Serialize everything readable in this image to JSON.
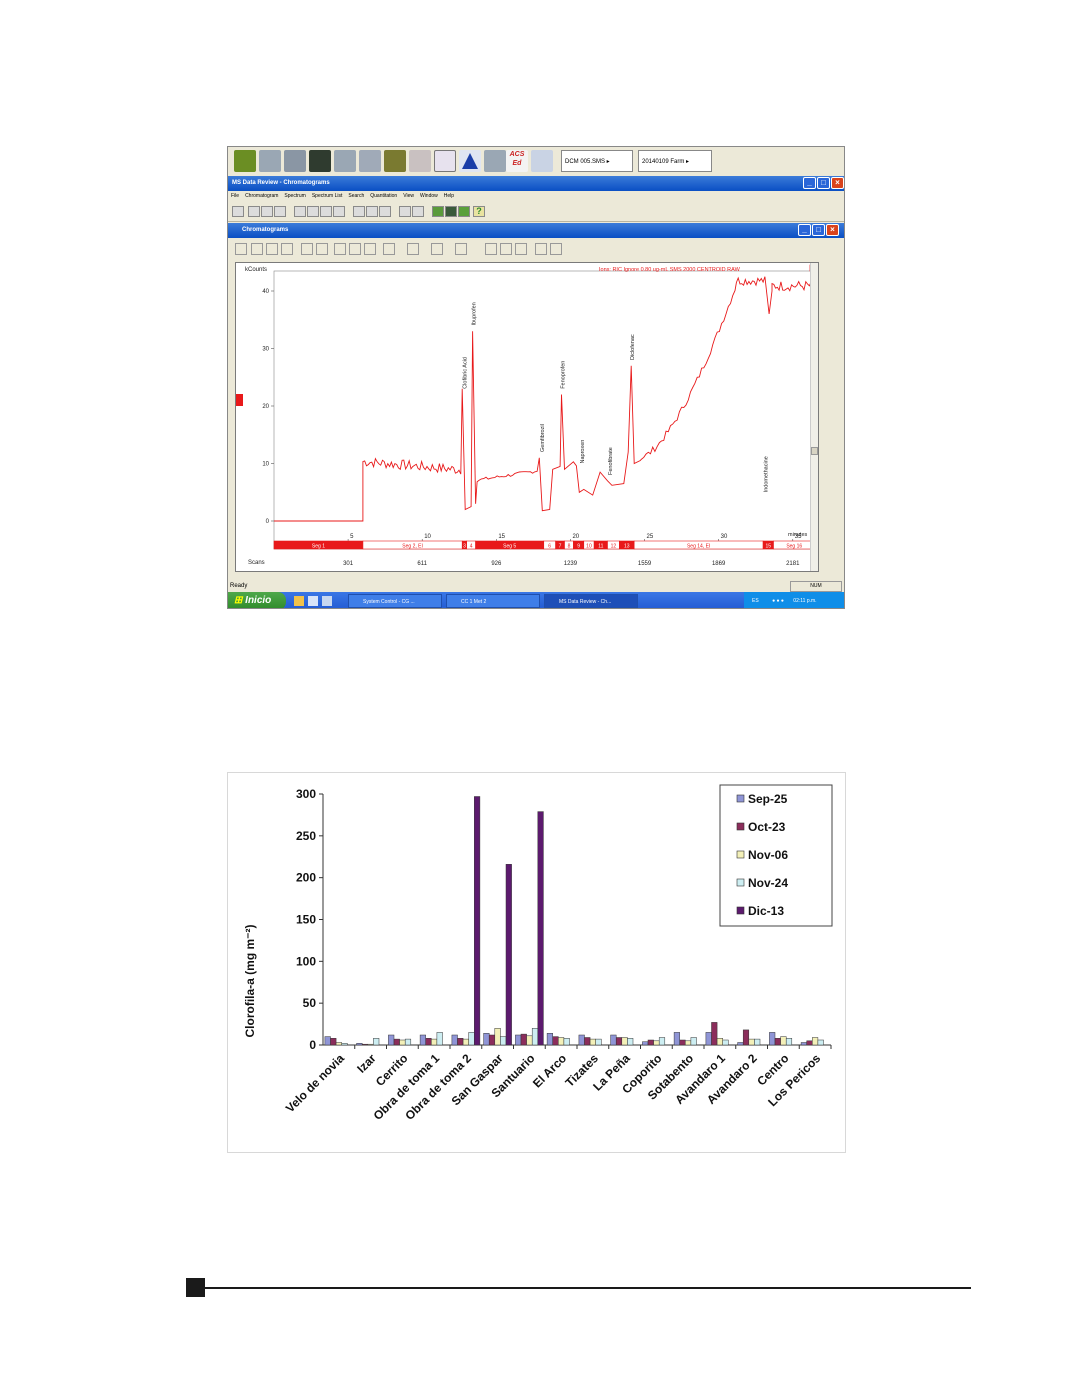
{
  "screenshot": {
    "toolbar_files": [
      "DCM 005.SMS",
      "20140109 Farm"
    ],
    "toolbar_acs": [
      "ACS",
      "Ed"
    ],
    "app_title": "MS Data Review - Chromatograms",
    "menu": [
      "File",
      "Chromatogram",
      "Spectrum",
      "Spectrum List",
      "Search",
      "Quantitation",
      "View",
      "Window",
      "Help"
    ],
    "child_title": "Chromatograms",
    "plot": {
      "yunit": "kCounts",
      "ion_label": "Ions: RIC Ignore 0.80 ug-mL  SMS 2000 CENTROID RAW",
      "xunit": "minutes",
      "seg_label": "",
      "scans_label": "Scans",
      "yticks": [
        "40",
        "30",
        "20",
        "10",
        "0"
      ],
      "xticks": [
        "5",
        "10",
        "15",
        "20",
        "25",
        "30",
        "35"
      ],
      "scans": [
        "301",
        "611",
        "926",
        "1239",
        "1559",
        "1869",
        "2181"
      ],
      "segments": [
        "Seg 1",
        "Seg 2, EI",
        "3",
        "4",
        "Seg 5",
        "6",
        "7",
        "8",
        "9",
        "10",
        "11",
        "12",
        "13",
        "Seg 14, EI",
        "15",
        "Seg 16"
      ],
      "peaks": [
        "Clofibric Acid",
        "Ibuprofen",
        "Gemfibrozil",
        "Fenoprofen",
        "Naproxen",
        "Fenofibrate",
        "Diclofenac",
        "Indomethacine"
      ],
      "line_color": "#e8191a"
    },
    "status": {
      "left": "Ready",
      "right": "NUM"
    },
    "taskbar": {
      "start": "Inicio",
      "tasks": [
        "System Control - CG ...",
        "CC 1 Met 2",
        "MS Data Review - Ch..."
      ],
      "lang": "ES",
      "clock": "02:11 p.m."
    }
  },
  "chart_data": {
    "type": "bar",
    "title": "",
    "xlabel": "",
    "ylabel": "Clorofila-a (mg m⁻²)",
    "ylim": [
      0,
      300
    ],
    "yticks": [
      0,
      50,
      100,
      150,
      200,
      250,
      300
    ],
    "legend_position": "top-right",
    "categories": [
      "Velo de novia",
      "Izar",
      "Cerrito",
      "Obra de toma 1",
      "Obra de toma 2",
      "San Gaspar",
      "Santuario",
      "El Arco",
      "Tizates",
      "La Peña",
      "Coporito",
      "Sotabento",
      "Avandaro 1",
      "Avandaro 2",
      "Centro",
      "Los Pericos"
    ],
    "series": [
      {
        "name": "Sep-25",
        "color": "#8f95d6",
        "values": [
          10,
          2,
          12,
          12,
          12,
          14,
          12,
          14,
          12,
          12,
          4,
          15,
          15,
          3,
          15,
          3
        ]
      },
      {
        "name": "Oct-23",
        "color": "#8b2d5b",
        "values": [
          8,
          1,
          7,
          8,
          8,
          12,
          13,
          10,
          9,
          9,
          6,
          6,
          27,
          18,
          8,
          5
        ]
      },
      {
        "name": "Nov-06",
        "color": "#f3f0b8",
        "values": [
          3,
          1,
          6,
          7,
          7,
          20,
          11,
          9,
          7,
          9,
          5,
          5,
          8,
          7,
          10,
          9
        ]
      },
      {
        "name": "Nov-24",
        "color": "#cdeef2",
        "values": [
          2,
          8,
          7,
          15,
          15,
          10,
          20,
          8,
          7,
          8,
          9,
          9,
          6,
          7,
          8,
          6
        ]
      },
      {
        "name": "Dic-13",
        "color": "#5c1a6e",
        "values": [
          0,
          0,
          0,
          0,
          297,
          216,
          279,
          0,
          0,
          0,
          0,
          0,
          0,
          0,
          0,
          0
        ]
      }
    ]
  }
}
